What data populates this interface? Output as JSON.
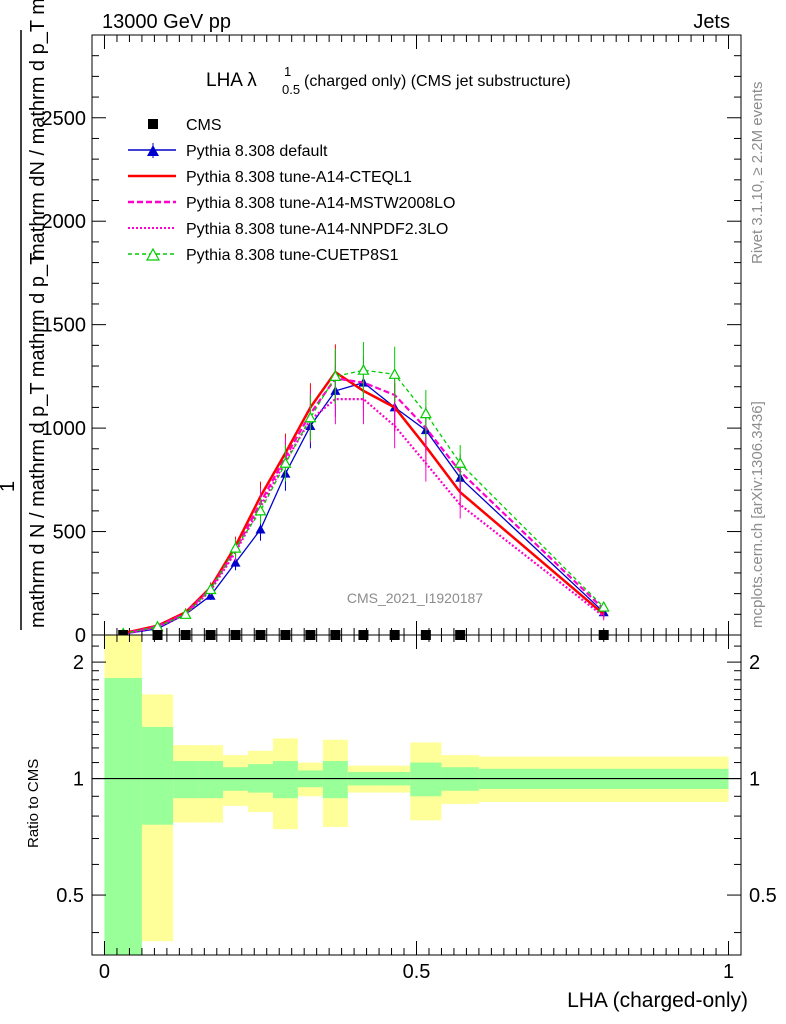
{
  "header": {
    "left": "13000 GeV pp",
    "right": "Jets"
  },
  "side_labels": {
    "rivet": "Rivet 3.1.10, ≥ 2.2M events",
    "mcplots": "mcplots.cern.ch [arXiv:1306.3436]"
  },
  "watermark": "CMS_2021_I1920187",
  "chart_data": [
    {
      "type": "line",
      "title": "LHA λ^1_0.5 (charged only) (CMS jet substructure)",
      "title_main": "LHA λ",
      "title_sup": "1",
      "title_sub": "0.5",
      "title_rest": "(charged only) (CMS jet substructure)",
      "ylabel_top": "mathrm dN / mathrm d p_T mathrm d lambda",
      "ylabel_num": "1",
      "ylabel_bottom": "mathrm d N / mathrm d p_T mathrm d p_T",
      "xlim": [
        -0.02,
        1.02
      ],
      "ylim": [
        0,
        2900
      ],
      "yticks": [
        0,
        500,
        1000,
        1500,
        2000,
        2500
      ],
      "yticklabels": [
        "0",
        "500",
        "1000",
        "1500",
        "2000",
        "2500"
      ],
      "legend_position": "top-left",
      "cms": {
        "name": "CMS",
        "x": [
          0.03,
          0.085,
          0.13,
          0.17,
          0.21,
          0.25,
          0.29,
          0.33,
          0.37,
          0.415,
          0.465,
          0.515,
          0.57,
          0.8
        ],
        "y": [
          0,
          0,
          0,
          0,
          0,
          0,
          0,
          0,
          0,
          0,
          0,
          0,
          0,
          0
        ]
      },
      "series": [
        {
          "name": "Pythia 8.308 default",
          "color": "#0000cc",
          "dash": "",
          "marker": "triangle-filled",
          "x": [
            0.03,
            0.085,
            0.13,
            0.17,
            0.21,
            0.25,
            0.29,
            0.33,
            0.37,
            0.415,
            0.465,
            0.515,
            0.57,
            0.8
          ],
          "y": [
            5,
            30,
            100,
            190,
            350,
            510,
            780,
            1010,
            1180,
            1220,
            1100,
            990,
            760,
            110
          ]
        },
        {
          "name": "Pythia 8.308 tune-A14-CTEQL1",
          "color": "#ff0000",
          "dash": "",
          "marker": "none",
          "x": [
            0.03,
            0.085,
            0.13,
            0.17,
            0.21,
            0.25,
            0.29,
            0.33,
            0.37,
            0.415,
            0.465,
            0.515,
            0.57,
            0.8
          ],
          "y": [
            8,
            45,
            110,
            230,
            430,
            670,
            880,
            1100,
            1270,
            1180,
            1100,
            910,
            690,
            100
          ]
        },
        {
          "name": "Pythia 8.308 tune-A14-MSTW2008LO",
          "color": "#ff00cc",
          "dash": "6,3",
          "marker": "none",
          "x": [
            0.03,
            0.085,
            0.13,
            0.17,
            0.21,
            0.25,
            0.29,
            0.33,
            0.37,
            0.415,
            0.465,
            0.515,
            0.57,
            0.8
          ],
          "y": [
            6,
            42,
            105,
            225,
            410,
            640,
            860,
            1070,
            1240,
            1220,
            1160,
            1000,
            790,
            125
          ]
        },
        {
          "name": "Pythia 8.308 tune-A14-NNPDF2.3LO",
          "color": "#ff00cc",
          "dash": "2,2",
          "marker": "none",
          "x": [
            0.03,
            0.085,
            0.13,
            0.17,
            0.21,
            0.25,
            0.29,
            0.33,
            0.37,
            0.415,
            0.465,
            0.515,
            0.57,
            0.8
          ],
          "y": [
            5,
            38,
            100,
            215,
            400,
            620,
            840,
            1040,
            1140,
            1140,
            1010,
            830,
            630,
            90
          ]
        },
        {
          "name": "Pythia 8.308 tune-CUETP8S1",
          "color": "#00cc00",
          "dash": "4,3",
          "marker": "triangle-open",
          "x": [
            0.03,
            0.085,
            0.13,
            0.17,
            0.21,
            0.25,
            0.29,
            0.33,
            0.37,
            0.415,
            0.465,
            0.515,
            0.57,
            0.8
          ],
          "y": [
            7,
            40,
            100,
            220,
            420,
            600,
            830,
            1050,
            1250,
            1280,
            1260,
            1070,
            830,
            135
          ]
        }
      ]
    },
    {
      "type": "area",
      "ylabel": "Ratio to CMS",
      "xlabel": "LHA (charged-only)",
      "xlim": [
        -0.02,
        1.02
      ],
      "ylim": [
        0.35,
        2.35
      ],
      "ytick_values": [
        0.5,
        1,
        2
      ],
      "yticklabels": [
        "0.5",
        "1",
        "2"
      ],
      "xtick_values": [
        0,
        0.5,
        1
      ],
      "xticklabels": [
        "0",
        "0.5",
        "1"
      ],
      "bins": [
        {
          "lo": 0.0,
          "hi": 0.06,
          "inner": [
            0.35,
            1.82
          ],
          "outer": [
            0.35,
            2.35
          ]
        },
        {
          "lo": 0.06,
          "hi": 0.11,
          "inner": [
            0.76,
            1.36
          ],
          "outer": [
            0.38,
            1.65
          ]
        },
        {
          "lo": 0.11,
          "hi": 0.15,
          "inner": [
            0.89,
            1.11
          ],
          "outer": [
            0.77,
            1.22
          ]
        },
        {
          "lo": 0.15,
          "hi": 0.19,
          "inner": [
            0.89,
            1.11
          ],
          "outer": [
            0.77,
            1.22
          ]
        },
        {
          "lo": 0.19,
          "hi": 0.23,
          "inner": [
            0.93,
            1.07
          ],
          "outer": [
            0.85,
            1.15
          ]
        },
        {
          "lo": 0.23,
          "hi": 0.27,
          "inner": [
            0.92,
            1.09
          ],
          "outer": [
            0.82,
            1.18
          ]
        },
        {
          "lo": 0.27,
          "hi": 0.31,
          "inner": [
            0.89,
            1.11
          ],
          "outer": [
            0.74,
            1.27
          ]
        },
        {
          "lo": 0.31,
          "hi": 0.35,
          "inner": [
            0.95,
            1.05
          ],
          "outer": [
            0.9,
            1.1
          ]
        },
        {
          "lo": 0.35,
          "hi": 0.39,
          "inner": [
            0.89,
            1.11
          ],
          "outer": [
            0.75,
            1.26
          ]
        },
        {
          "lo": 0.39,
          "hi": 0.44,
          "inner": [
            0.96,
            1.04
          ],
          "outer": [
            0.92,
            1.08
          ]
        },
        {
          "lo": 0.44,
          "hi": 0.49,
          "inner": [
            0.96,
            1.04
          ],
          "outer": [
            0.92,
            1.08
          ]
        },
        {
          "lo": 0.49,
          "hi": 0.54,
          "inner": [
            0.9,
            1.1
          ],
          "outer": [
            0.78,
            1.24
          ]
        },
        {
          "lo": 0.54,
          "hi": 0.6,
          "inner": [
            0.93,
            1.07
          ],
          "outer": [
            0.86,
            1.15
          ]
        },
        {
          "lo": 0.6,
          "hi": 1.0,
          "inner": [
            0.94,
            1.06
          ],
          "outer": [
            0.87,
            1.14
          ]
        }
      ],
      "band_colors": {
        "inner": "#99ff99",
        "outer": "#ffff99"
      }
    }
  ]
}
